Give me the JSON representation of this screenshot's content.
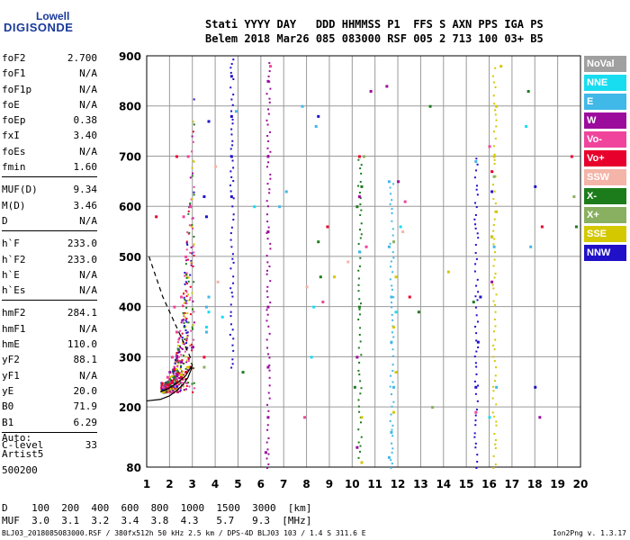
{
  "logo": {
    "top": "Lowell",
    "main": "DIGISONDE"
  },
  "header": {
    "line1": "Stati YYYY DAY   DDD HHMMSS P1  FFS S AXN PPS IGA PS",
    "line2": "Belem 2018 Mar26 085 083000 RSF 005 2 713 100 03+ B5"
  },
  "params": {
    "group1": [
      {
        "label": "foF2",
        "value": "2.700"
      },
      {
        "label": "foF1",
        "value": "N/A"
      },
      {
        "label": "foF1p",
        "value": "N/A"
      },
      {
        "label": "foE",
        "value": "N/A"
      },
      {
        "label": "foEp",
        "value": "0.38"
      },
      {
        "label": "fxI",
        "value": "3.40"
      },
      {
        "label": "foEs",
        "value": "N/A"
      },
      {
        "label": "fmin",
        "value": "1.60"
      }
    ],
    "group2": [
      {
        "label": "MUF(D)",
        "value": "9.34"
      },
      {
        "label": "M(D)",
        "value": "3.46"
      },
      {
        "label": "D",
        "value": "N/A"
      }
    ],
    "group3": [
      {
        "label": "h`F",
        "value": "233.0"
      },
      {
        "label": "h`F2",
        "value": "233.0"
      },
      {
        "label": "h`E",
        "value": "N/A"
      },
      {
        "label": "h`Es",
        "value": "N/A"
      }
    ],
    "group4": [
      {
        "label": "hmF2",
        "value": "284.1"
      },
      {
        "label": "hmF1",
        "value": "N/A"
      },
      {
        "label": "hmE",
        "value": "110.0"
      },
      {
        "label": "yF2",
        "value": "88.1"
      },
      {
        "label": "yF1",
        "value": "N/A"
      },
      {
        "label": "yE",
        "value": "20.0"
      },
      {
        "label": "B0",
        "value": "71.9"
      },
      {
        "label": "B1",
        "value": "6.29"
      }
    ],
    "group5": [
      {
        "label": "C-level",
        "value": "33"
      }
    ]
  },
  "auto": {
    "line1": "Auto:",
    "line2": "Artist5",
    "line3": "500200"
  },
  "legend": [
    {
      "label": "NoVal",
      "color": "#a0a0a0"
    },
    {
      "label": "NNE",
      "color": "#18dcf0"
    },
    {
      "label": "E",
      "color": "#40b8e8"
    },
    {
      "label": "W",
      "color": "#9c0c9c"
    },
    {
      "label": "Vo-",
      "color": "#f0449c"
    },
    {
      "label": "Vo+",
      "color": "#e8002c"
    },
    {
      "label": "SSW",
      "color": "#f4b4a8"
    },
    {
      "label": "X-",
      "color": "#1c7c1c"
    },
    {
      "label": "X+",
      "color": "#88b060"
    },
    {
      "label": "SSE",
      "color": "#d4c800"
    },
    {
      "label": "NNW",
      "color": "#2010c8"
    }
  ],
  "dtable": {
    "row1": "D    100  200  400  600  800  1000  1500  3000  [km]",
    "row2": "MUF  3.0  3.1  3.2  3.4  3.8  4.3   5.7   9.3  [MHz]"
  },
  "footer": "BLJ03_2018085083000.RSF / 380fx512h 50 kHz 2.5 km / DPS-4D BLJ03 103 / 1.4 S 311.6 E",
  "version": "Ion2Png v. 1.3.17",
  "chart_data": {
    "type": "scatter",
    "title": "",
    "xlabel": "",
    "ylabel": "",
    "xlim": [
      1,
      20
    ],
    "ylim": [
      80,
      900
    ],
    "xticks": [
      1,
      2,
      3,
      4,
      5,
      6,
      7,
      8,
      9,
      10,
      11,
      12,
      13,
      14,
      15,
      16,
      17,
      18,
      19,
      20
    ],
    "yticks": [
      80,
      200,
      300,
      400,
      500,
      600,
      700,
      800,
      900
    ],
    "grid": true,
    "series": [
      {
        "name": "NNW",
        "color": "#2010c8",
        "points": [
          [
            4.7,
            860
          ],
          [
            4.7,
            780
          ],
          [
            4.7,
            700
          ],
          [
            4.7,
            620
          ],
          [
            3.7,
            770
          ],
          [
            3.5,
            620
          ],
          [
            3.6,
            580
          ],
          [
            8.5,
            780
          ],
          [
            15.4,
            240
          ],
          [
            15.5,
            330
          ],
          [
            15.6,
            420
          ],
          [
            16.1,
            540
          ],
          [
            16.1,
            630
          ],
          [
            18.0,
            240
          ],
          [
            18.0,
            640
          ]
        ]
      },
      {
        "name": "W",
        "color": "#9c0c9c",
        "points": [
          [
            6.3,
            850
          ],
          [
            6.3,
            700
          ],
          [
            6.3,
            550
          ],
          [
            6.3,
            400
          ],
          [
            6.3,
            280
          ],
          [
            6.3,
            180
          ],
          [
            6.2,
            110
          ],
          [
            10.2,
            120
          ],
          [
            10.2,
            300
          ],
          [
            10.3,
            620
          ],
          [
            12.0,
            650
          ],
          [
            16.1,
            450
          ],
          [
            18.2,
            180
          ],
          [
            3.0,
            320
          ],
          [
            2.5,
            290
          ],
          [
            2.0,
            270
          ],
          [
            11.5,
            840
          ],
          [
            10.8,
            830
          ]
        ]
      },
      {
        "name": "Vo-",
        "color": "#f0449c",
        "points": [
          [
            2.9,
            600
          ],
          [
            2.8,
            700
          ],
          [
            2.7,
            500
          ],
          [
            2.5,
            420
          ],
          [
            2.3,
            350
          ],
          [
            2.1,
            300
          ],
          [
            1.9,
            260
          ],
          [
            1.7,
            240
          ],
          [
            2.2,
            400
          ],
          [
            2.6,
            580
          ],
          [
            6.4,
            880
          ],
          [
            8.7,
            410
          ],
          [
            10.6,
            520
          ],
          [
            12.3,
            610
          ],
          [
            7.9,
            180
          ],
          [
            15.4,
            190
          ],
          [
            16.0,
            720
          ]
        ]
      },
      {
        "name": "Vo+",
        "color": "#e8002c",
        "points": [
          [
            2.9,
            280
          ],
          [
            2.7,
            270
          ],
          [
            2.5,
            260
          ],
          [
            2.3,
            250
          ],
          [
            2.1,
            250
          ],
          [
            1.9,
            245
          ],
          [
            3.5,
            300
          ],
          [
            2.3,
            700
          ],
          [
            1.4,
            580
          ],
          [
            8.9,
            560
          ],
          [
            10.3,
            700
          ],
          [
            12.5,
            420
          ],
          [
            16.1,
            670
          ],
          [
            18.3,
            560
          ],
          [
            19.6,
            700
          ]
        ]
      },
      {
        "name": "E",
        "color": "#40b8e8",
        "points": [
          [
            3.6,
            400
          ],
          [
            3.6,
            350
          ],
          [
            3.7,
            420
          ],
          [
            6.8,
            600
          ],
          [
            7.1,
            630
          ],
          [
            7.8,
            800
          ],
          [
            8.4,
            760
          ],
          [
            11.6,
            650
          ],
          [
            11.6,
            520
          ],
          [
            11.7,
            420
          ],
          [
            11.7,
            330
          ],
          [
            11.8,
            240
          ],
          [
            11.7,
            150
          ],
          [
            11.6,
            100
          ],
          [
            15.4,
            690
          ],
          [
            16.2,
            520
          ],
          [
            16.3,
            240
          ],
          [
            10.3,
            510
          ],
          [
            4.9,
            790
          ],
          [
            17.8,
            520
          ]
        ]
      },
      {
        "name": "NNE",
        "color": "#18dcf0",
        "points": [
          [
            3.7,
            390
          ],
          [
            3.6,
            360
          ],
          [
            8.2,
            300
          ],
          [
            8.3,
            400
          ],
          [
            11.9,
            390
          ],
          [
            12.1,
            560
          ],
          [
            16.0,
            180
          ],
          [
            17.6,
            760
          ],
          [
            5.7,
            600
          ],
          [
            4.3,
            380
          ]
        ]
      },
      {
        "name": "X-",
        "color": "#1c7c1c",
        "points": [
          [
            10.3,
            400
          ],
          [
            10.2,
            600
          ],
          [
            10.4,
            640
          ],
          [
            12.9,
            390
          ],
          [
            8.6,
            460
          ],
          [
            15.3,
            410
          ],
          [
            19.8,
            560
          ],
          [
            17.7,
            830
          ],
          [
            8.5,
            530
          ],
          [
            5.2,
            270
          ],
          [
            10.1,
            240
          ],
          [
            13.4,
            800
          ],
          [
            1.9,
            250
          ],
          [
            2.2,
            260
          ]
        ]
      },
      {
        "name": "X+",
        "color": "#88b060",
        "points": [
          [
            10.5,
            700
          ],
          [
            11.8,
            530
          ],
          [
            16.2,
            660
          ],
          [
            3.5,
            280
          ],
          [
            13.5,
            200
          ],
          [
            19.7,
            620
          ]
        ]
      },
      {
        "name": "SSE",
        "color": "#d4c800",
        "points": [
          [
            16.3,
            800
          ],
          [
            16.2,
            700
          ],
          [
            16.3,
            590
          ],
          [
            16.1,
            540
          ],
          [
            11.9,
            460
          ],
          [
            11.8,
            360
          ],
          [
            11.9,
            270
          ],
          [
            11.8,
            190
          ],
          [
            10.4,
            180
          ],
          [
            10.4,
            90
          ],
          [
            9.2,
            460
          ],
          [
            14.2,
            470
          ],
          [
            16.5,
            880
          ],
          [
            2.5,
            265
          ],
          [
            2.8,
            280
          ]
        ]
      },
      {
        "name": "SSW",
        "color": "#f4b4a8",
        "points": [
          [
            4.1,
            450
          ],
          [
            4.0,
            680
          ],
          [
            12.2,
            550
          ],
          [
            9.8,
            490
          ],
          [
            8.0,
            440
          ]
        ]
      }
    ]
  }
}
